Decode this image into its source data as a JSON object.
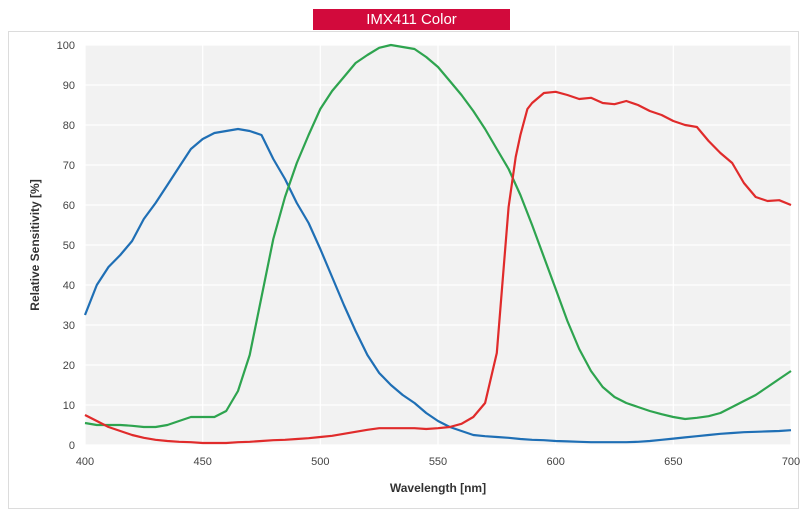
{
  "chart_data": {
    "type": "line",
    "title": "IMX411 Color",
    "xlabel": "Wavelength [nm]",
    "ylabel": "Relative Sensitivity [%]",
    "xlim": [
      400,
      700
    ],
    "ylim": [
      0,
      100
    ],
    "x_ticks": [
      "400",
      "450",
      "500",
      "550",
      "600",
      "650",
      "700"
    ],
    "y_ticks": [
      "0",
      "10",
      "20",
      "30",
      "40",
      "50",
      "60",
      "70",
      "80",
      "90",
      "100"
    ],
    "grid": true,
    "legend": "none",
    "series": [
      {
        "color": "#1f6fb5",
        "x": [
          400,
          405,
          410,
          415,
          420,
          425,
          430,
          435,
          440,
          445,
          450,
          455,
          460,
          465,
          470,
          475,
          480,
          485,
          490,
          495,
          500,
          505,
          510,
          515,
          520,
          525,
          530,
          535,
          540,
          545,
          550,
          555,
          560,
          565,
          570,
          575,
          580,
          585,
          590,
          595,
          600,
          605,
          610,
          615,
          620,
          625,
          630,
          635,
          640,
          645,
          650,
          655,
          660,
          665,
          670,
          675,
          680,
          685,
          690,
          695,
          700
        ],
        "y": [
          32.5,
          40,
          44.5,
          47.5,
          51,
          56.5,
          60.5,
          65,
          69.5,
          74,
          76.5,
          78,
          78.5,
          79,
          78.5,
          77.5,
          71.5,
          66.5,
          60.5,
          55.5,
          49,
          42,
          35,
          28.5,
          22.5,
          18,
          15,
          12.5,
          10.5,
          8,
          6,
          4.5,
          3.5,
          2.5,
          2.2,
          2,
          1.8,
          1.5,
          1.3,
          1.2,
          1,
          0.9,
          0.8,
          0.7,
          0.7,
          0.7,
          0.7,
          0.8,
          1,
          1.3,
          1.6,
          1.9,
          2.2,
          2.5,
          2.8,
          3,
          3.2,
          3.3,
          3.4,
          3.5,
          3.7
        ]
      },
      {
        "color": "#2ea44f",
        "x": [
          400,
          405,
          410,
          415,
          420,
          425,
          430,
          435,
          440,
          445,
          450,
          455,
          460,
          465,
          470,
          475,
          480,
          485,
          490,
          495,
          500,
          505,
          510,
          515,
          520,
          525,
          530,
          535,
          540,
          545,
          550,
          555,
          560,
          565,
          570,
          575,
          580,
          585,
          590,
          595,
          600,
          605,
          610,
          615,
          620,
          625,
          630,
          635,
          640,
          645,
          650,
          655,
          660,
          665,
          670,
          675,
          680,
          685,
          690,
          695,
          700
        ],
        "y": [
          5.5,
          5,
          5,
          5,
          4.8,
          4.5,
          4.5,
          5,
          6,
          7,
          7,
          7,
          8.5,
          13.5,
          22.5,
          37,
          51.5,
          62,
          70.5,
          77.5,
          84,
          88.5,
          92,
          95.5,
          97.5,
          99.3,
          100,
          99.5,
          99,
          97,
          94.5,
          91,
          87.5,
          83.5,
          79,
          74,
          69,
          62.5,
          55,
          47,
          39,
          31,
          24,
          18.5,
          14.5,
          12,
          10.5,
          9.5,
          8.5,
          7.7,
          7,
          6.5,
          6.8,
          7.2,
          8,
          9.5,
          11,
          12.5,
          14.5,
          16.5,
          18.5
        ]
      },
      {
        "color": "#e02b2b",
        "x": [
          400,
          405,
          410,
          415,
          420,
          425,
          430,
          435,
          440,
          445,
          450,
          455,
          460,
          465,
          470,
          475,
          480,
          485,
          490,
          495,
          500,
          505,
          510,
          515,
          520,
          525,
          530,
          535,
          540,
          545,
          550,
          555,
          560,
          565,
          570,
          575,
          578,
          580,
          583,
          585,
          588,
          590,
          595,
          600,
          605,
          610,
          615,
          620,
          625,
          630,
          635,
          640,
          645,
          650,
          655,
          660,
          665,
          670,
          675,
          680,
          685,
          690,
          695,
          700
        ],
        "y": [
          7.5,
          6,
          4.5,
          3.5,
          2.5,
          1.8,
          1.3,
          1,
          0.8,
          0.7,
          0.5,
          0.5,
          0.5,
          0.7,
          0.8,
          1,
          1.2,
          1.3,
          1.5,
          1.7,
          2,
          2.3,
          2.8,
          3.3,
          3.8,
          4.2,
          4.2,
          4.2,
          4.2,
          4,
          4.2,
          4.5,
          5.3,
          7,
          10.5,
          23,
          45,
          59.5,
          72,
          77.5,
          84,
          85.5,
          88,
          88.3,
          87.5,
          86.5,
          86.8,
          85.5,
          85.2,
          86,
          85,
          83.5,
          82.5,
          81,
          80,
          79.5,
          76,
          73,
          70.5,
          65.5,
          62,
          61,
          61.2,
          60
        ]
      }
    ]
  }
}
